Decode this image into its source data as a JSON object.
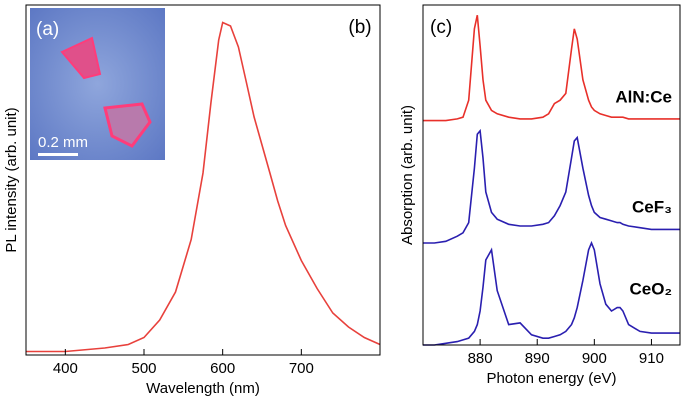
{
  "chart_data": [
    {
      "type": "line",
      "x_label": "Wavelength (nm)",
      "y_label": "PL intensity (arb. unit)",
      "annotations": [
        "(a)",
        "(b)",
        "0.2 mm"
      ],
      "x": [
        350,
        400,
        450,
        480,
        500,
        520,
        540,
        560,
        575,
        585,
        595,
        600,
        610,
        620,
        630,
        640,
        650,
        660,
        670,
        680,
        700,
        720,
        740,
        760,
        780,
        800
      ],
      "values": [
        0.01,
        0.01,
        0.02,
        0.03,
        0.05,
        0.1,
        0.18,
        0.33,
        0.52,
        0.72,
        0.9,
        0.95,
        0.94,
        0.88,
        0.78,
        0.68,
        0.6,
        0.52,
        0.44,
        0.37,
        0.27,
        0.19,
        0.12,
        0.08,
        0.05,
        0.03
      ],
      "color": "#e8413c",
      "xlim": [
        350,
        800
      ],
      "xticks": [
        400,
        500,
        600,
        700
      ],
      "ylim": [
        0,
        1
      ]
    },
    {
      "type": "line",
      "x_label": "Photon energy (eV)",
      "y_label": "Absorption (arb. unit)",
      "annotations": [
        "(c)"
      ],
      "x": [
        870,
        872,
        874,
        876,
        877,
        878,
        879,
        879.5,
        880,
        880.5,
        881,
        882,
        883,
        885,
        887,
        889,
        891,
        892,
        893,
        894,
        895,
        896,
        896.5,
        897,
        898,
        899,
        899.5,
        900,
        901,
        902,
        903,
        904,
        904.5,
        905,
        906,
        908,
        910,
        912,
        915
      ],
      "series": [
        {
          "name": "AlN:Ce",
          "color": "#e8302a",
          "values": [
            0.66,
            0.66,
            0.66,
            0.665,
            0.67,
            0.72,
            0.93,
            0.97,
            0.88,
            0.78,
            0.72,
            0.69,
            0.68,
            0.67,
            0.665,
            0.665,
            0.67,
            0.68,
            0.71,
            0.72,
            0.74,
            0.87,
            0.93,
            0.9,
            0.78,
            0.72,
            0.7,
            0.69,
            0.68,
            0.675,
            0.67,
            0.67,
            0.67,
            0.67,
            0.665,
            0.665,
            0.665,
            0.665,
            0.665
          ]
        },
        {
          "name": "CeF₃",
          "color": "#2a1fb0",
          "values": [
            0.3,
            0.3,
            0.305,
            0.32,
            0.33,
            0.36,
            0.52,
            0.62,
            0.63,
            0.55,
            0.45,
            0.39,
            0.37,
            0.355,
            0.35,
            0.35,
            0.355,
            0.36,
            0.38,
            0.41,
            0.45,
            0.55,
            0.6,
            0.61,
            0.52,
            0.44,
            0.41,
            0.39,
            0.375,
            0.37,
            0.365,
            0.36,
            0.36,
            0.355,
            0.35,
            0.345,
            0.34,
            0.34,
            0.34
          ]
        },
        {
          "name": "CeO₂",
          "color": "#2a1fb0",
          "values": [
            0.0,
            0.0,
            0.005,
            0.01,
            0.015,
            0.02,
            0.04,
            0.06,
            0.1,
            0.17,
            0.25,
            0.28,
            0.16,
            0.06,
            0.065,
            0.03,
            0.02,
            0.02,
            0.025,
            0.03,
            0.04,
            0.06,
            0.08,
            0.11,
            0.19,
            0.28,
            0.3,
            0.28,
            0.18,
            0.12,
            0.1,
            0.11,
            0.11,
            0.1,
            0.06,
            0.04,
            0.035,
            0.035,
            0.035
          ]
        }
      ],
      "xlim": [
        870,
        915
      ],
      "xticks": [
        880,
        890,
        900,
        910
      ],
      "ylim": [
        0,
        1
      ]
    }
  ]
}
